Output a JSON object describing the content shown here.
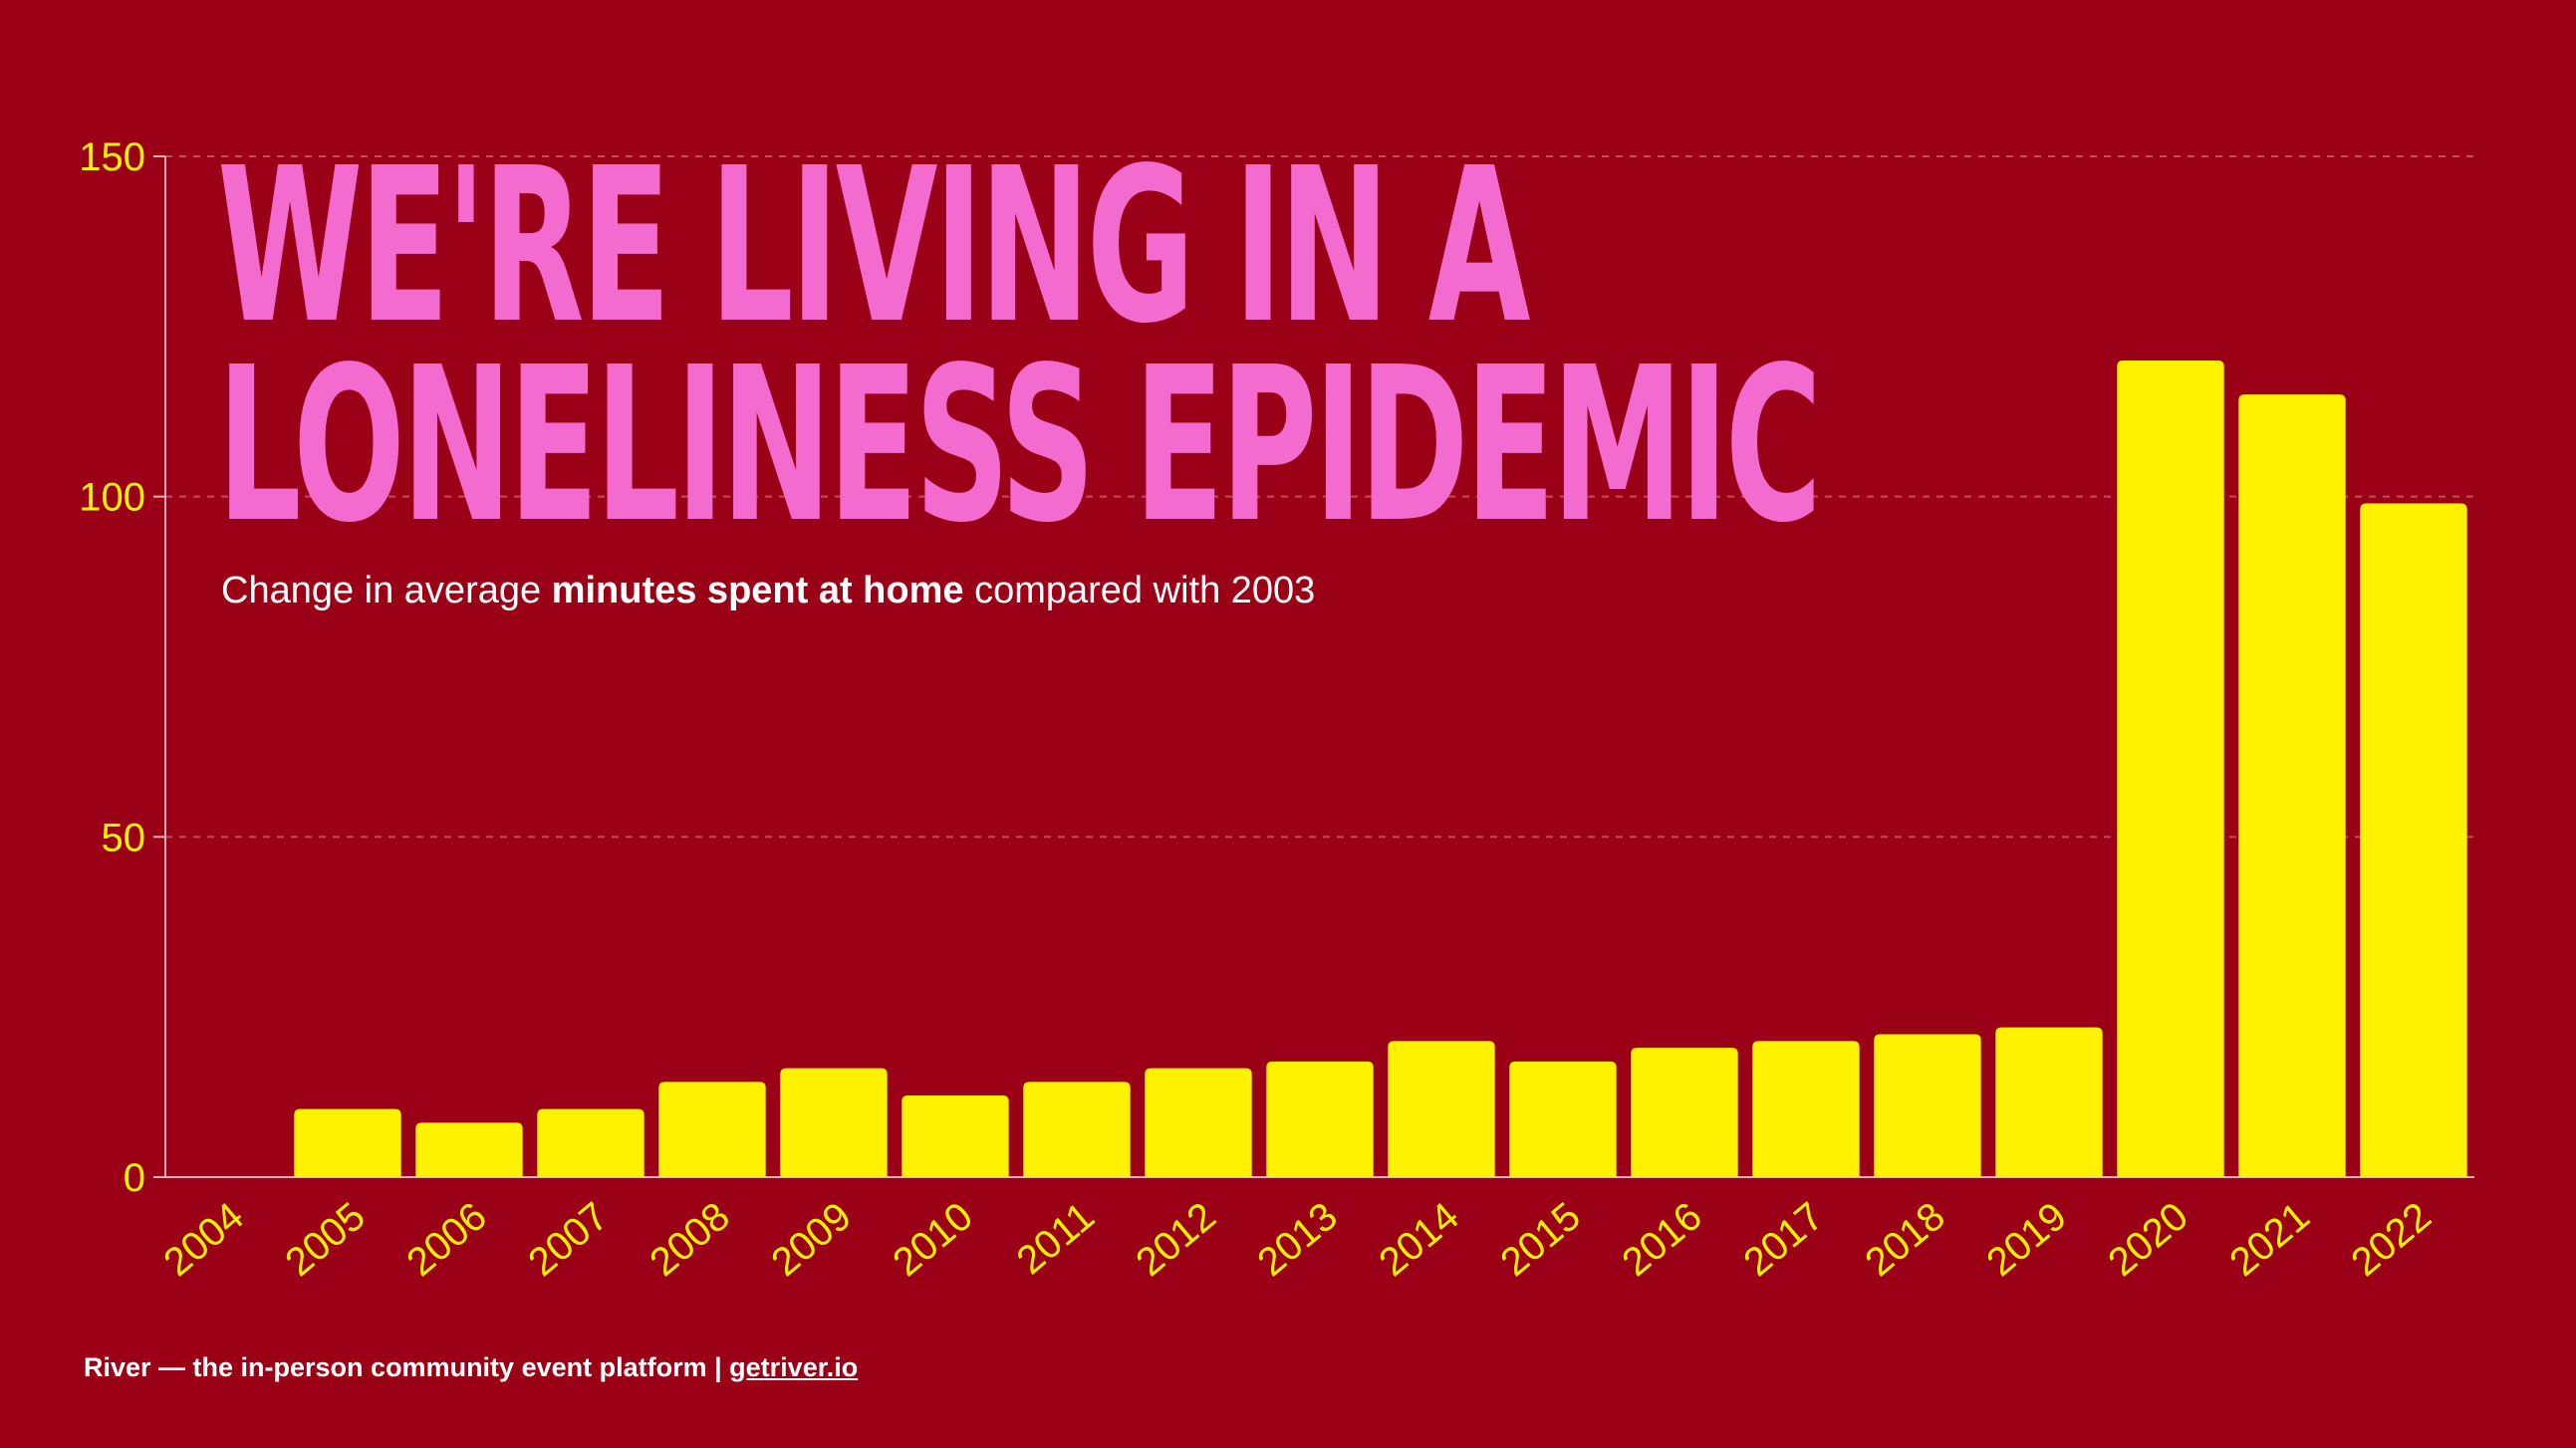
{
  "chart_data": {
    "type": "bar",
    "title_lines": [
      "WE'RE LIVING IN A",
      "LONELINESS EPIDEMIC"
    ],
    "subtitle": {
      "prefix": "Change in average ",
      "bold": "minutes spent at home",
      "suffix": " compared with 2003"
    },
    "categories": [
      "2004",
      "2005",
      "2006",
      "2007",
      "2008",
      "2009",
      "2010",
      "2011",
      "2012",
      "2013",
      "2014",
      "2015",
      "2016",
      "2017",
      "2018",
      "2019",
      "2020",
      "2021",
      "2022"
    ],
    "values": [
      0,
      10,
      8,
      10,
      14,
      16,
      12,
      14,
      16,
      17,
      20,
      17,
      19,
      20,
      21,
      22,
      120,
      115,
      99
    ],
    "ylim": [
      0,
      150
    ],
    "yticks": [
      "0",
      "50",
      "100",
      "150"
    ],
    "grid": true,
    "colors": {
      "background": "#9a0016",
      "bars": "#fff200",
      "title": "#f46bd0",
      "ticks": "#fff200",
      "grid": "#c94a5a",
      "axis": "#e9b0b8"
    }
  },
  "footer": {
    "text": "River — the in-person community event platform | ",
    "link": "getriver.io"
  }
}
